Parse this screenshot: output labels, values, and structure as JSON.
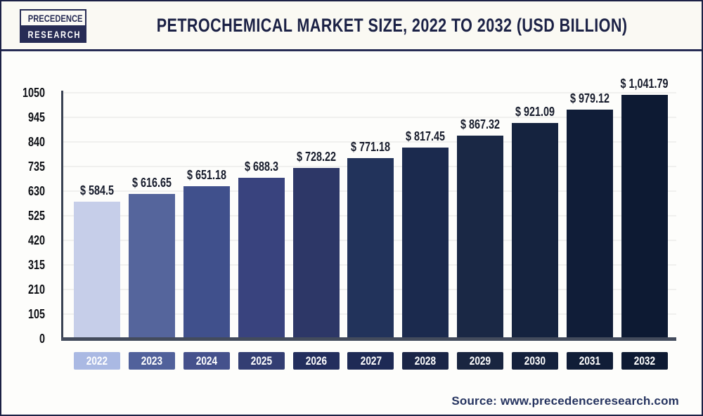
{
  "header": {
    "logo": {
      "line1": "PRECEDENCE",
      "line2": "RESEARCH"
    },
    "title": "PETROCHEMICAL MARKET SIZE, 2022 TO 2032 (USD BILLION)"
  },
  "chart_data": {
    "type": "bar",
    "title": "Petrochemical Market Size, 2022 to 2032 (USD Billion)",
    "categories": [
      "2022",
      "2023",
      "2024",
      "2025",
      "2026",
      "2027",
      "2028",
      "2029",
      "2030",
      "2031",
      "2032"
    ],
    "values": [
      584.5,
      616.65,
      651.18,
      688.3,
      728.22,
      771.18,
      817.45,
      867.32,
      921.09,
      979.12,
      1041.79
    ],
    "value_labels": [
      "$ 584.5",
      "$ 616.65",
      "$ 651.18",
      "$ 688.3",
      "$ 728.22",
      "$ 771.18",
      "$ 817.45",
      "$ 867.32",
      "$ 921.09",
      "$ 979.12",
      "$ 1,041.79"
    ],
    "bar_colors": [
      "#c6cee9",
      "#55659c",
      "#40508c",
      "#39437e",
      "#2d3767",
      "#22335b",
      "#1b2a4e",
      "#1a2845",
      "#15233f",
      "#101d38",
      "#0d1a33"
    ],
    "chip_colors": [
      "#aab9e3",
      "#51619b",
      "#45518c",
      "#333e73",
      "#232e5d",
      "#1e2a55",
      "#1a2547",
      "#192540",
      "#14213c",
      "#101d37",
      "#0e1a33"
    ],
    "xlabel": "",
    "ylabel": "",
    "ylim": [
      0,
      1050
    ],
    "yticks": [
      0,
      105,
      210,
      315,
      420,
      525,
      630,
      735,
      840,
      945,
      1050
    ],
    "grid": true,
    "legend": "none"
  },
  "footer": {
    "source": "Source: www.precedenceresearch.com"
  }
}
